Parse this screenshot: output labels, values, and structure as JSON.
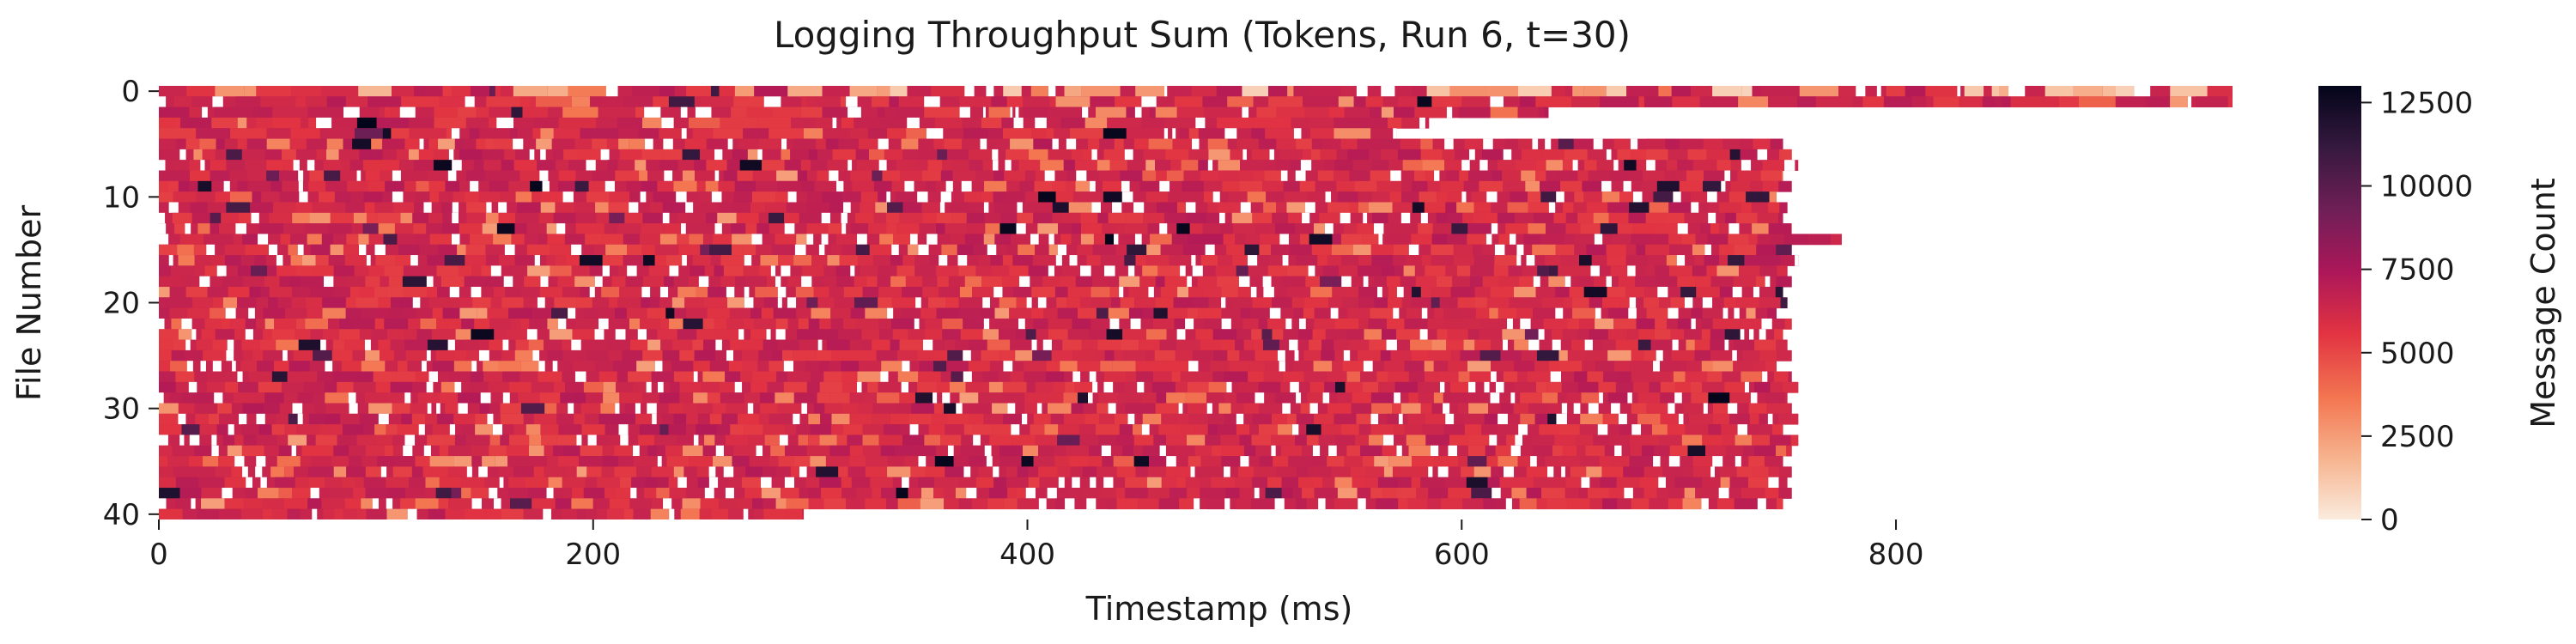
{
  "chart_data": {
    "type": "heatmap",
    "title": "Logging Throughput Sum (Tokens, Run 6, t=30)",
    "xlabel": "Timestamp (ms)",
    "ylabel": "File Number",
    "colorbar_label": "Message Count",
    "xlim": [
      0,
      955
    ],
    "ylim": [
      41,
      0
    ],
    "x_ticks": [
      0,
      200,
      400,
      600,
      800
    ],
    "y_ticks": [
      0,
      10,
      20,
      30,
      40
    ],
    "colorbar_ticks": [
      0,
      2500,
      5000,
      7500,
      10000,
      12500
    ],
    "colorbar_range": [
      0,
      13000
    ],
    "grid": false,
    "colormap": "rocket_r",
    "colormap_stops": [
      "#faebdd",
      "#f6b48f",
      "#f37651",
      "#e13342",
      "#ad1759",
      "#701f57",
      "#35193e",
      "#03051a"
    ],
    "typical_value": 6000,
    "row_extent_ms": [
      955,
      955,
      640,
      585,
      570,
      748,
      752,
      755,
      748,
      752,
      745,
      750,
      748,
      752,
      775,
      752,
      755,
      750,
      752,
      748,
      750,
      745,
      752,
      748,
      750,
      752,
      745,
      752,
      755,
      750,
      752,
      755,
      748,
      755,
      752,
      748,
      752,
      750,
      752,
      748,
      297
    ]
  }
}
